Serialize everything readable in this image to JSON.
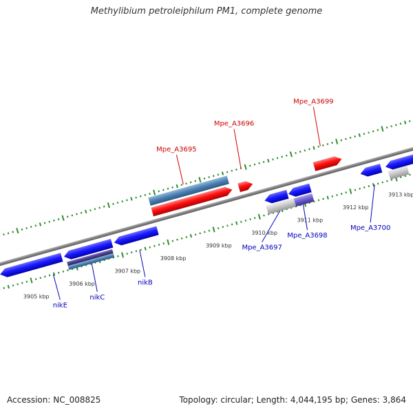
{
  "title": "Methylibium petroleiphilum PM1, complete genome",
  "footer": {
    "accession": "Accession: NC_008825",
    "summary": "Topology: circular; Length: 4,044,195 bp; Genes: 3,864"
  },
  "colors": {
    "backbone": "#8a8a8a",
    "ticks": "#2e8b2e",
    "plus_gene": "#ff0000",
    "minus_gene": "#0000ee",
    "plus_label": "#cc0000",
    "minus_label": "#0000bb",
    "steel": "#4a7fb0",
    "purple": "#6a5acd",
    "grey_gene": "#c0c0c0"
  },
  "axis": {
    "unit": "kbp",
    "ticks": [
      {
        "label": "3905 kbp",
        "kbp": 3905
      },
      {
        "label": "3906 kbp",
        "kbp": 3906
      },
      {
        "label": "3907 kbp",
        "kbp": 3907
      },
      {
        "label": "3908 kbp",
        "kbp": 3908
      },
      {
        "label": "3909 kbp",
        "kbp": 3909
      },
      {
        "label": "3910 kbp",
        "kbp": 3910
      },
      {
        "label": "3911 kbp",
        "kbp": 3911
      },
      {
        "label": "3912 kbp",
        "kbp": 3912
      },
      {
        "label": "3913 kbp",
        "kbp": 3913
      }
    ]
  },
  "genes": [
    {
      "id": "nikE",
      "label": "nikE",
      "strand": "minus",
      "start_kbp": 3904.4,
      "end_kbp": 3905.75
    },
    {
      "id": "nikC",
      "label": "nikC",
      "strand": "minus",
      "start_kbp": 3905.8,
      "end_kbp": 3906.85
    },
    {
      "id": "nikB",
      "label": "nikB",
      "strand": "minus",
      "start_kbp": 3906.9,
      "end_kbp": 3907.85
    },
    {
      "id": "Mpe_A3695",
      "label": "Mpe_A3695",
      "strand": "plus",
      "start_kbp": 3907.85,
      "end_kbp": 3909.6
    },
    {
      "id": "Mpe_A3696",
      "label": "Mpe_A3696",
      "strand": "plus",
      "start_kbp": 3909.75,
      "end_kbp": 3910.05
    },
    {
      "id": "Mpe_A3697",
      "label": "Mpe_A3697",
      "strand": "minus",
      "start_kbp": 3910.2,
      "end_kbp": 3910.7
    },
    {
      "id": "Mpe_A3698",
      "label": "Mpe_A3698",
      "strand": "minus",
      "start_kbp": 3910.72,
      "end_kbp": 3911.2
    },
    {
      "id": "Mpe_A3699",
      "label": "Mpe_A3699",
      "strand": "plus",
      "start_kbp": 3911.4,
      "end_kbp": 3912.0
    },
    {
      "id": "Mpe_A3700",
      "label": "Mpe_A3700",
      "strand": "minus",
      "start_kbp": 3912.3,
      "end_kbp": 3912.75
    },
    {
      "id": "gene-3913a",
      "strand": "minus",
      "start_kbp": 3912.85,
      "end_kbp": 3913.7
    },
    {
      "id": "gene-3913b",
      "strand": "minus",
      "start_kbp": 3913.75,
      "end_kbp": 3914.3
    }
  ]
}
